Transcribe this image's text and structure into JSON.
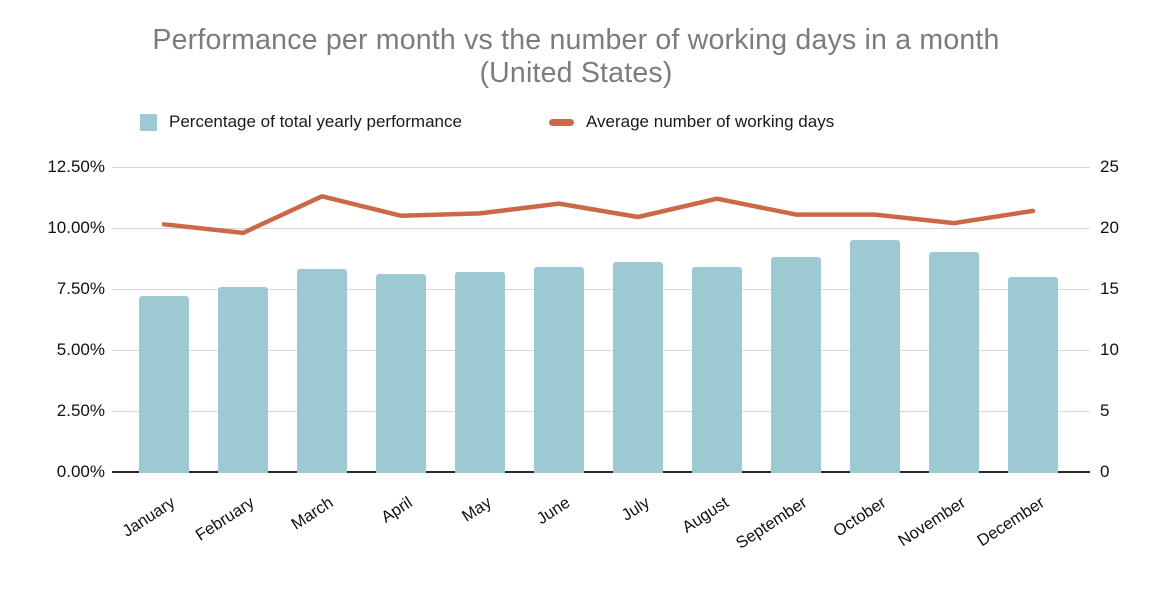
{
  "title": {
    "line1": "Performance per month vs the number of working days in a month",
    "line2": "(United States)"
  },
  "legend": {
    "items": [
      {
        "label": "Percentage of total yearly performance",
        "swatch": "square",
        "color": "#9dc9d3"
      },
      {
        "label": "Average number of working days",
        "swatch": "dash",
        "color": "#cb6847"
      }
    ]
  },
  "chart_data": {
    "type": "combo-bar-line",
    "title": "Performance per month vs the number of working days in a month (United States)",
    "categories": [
      "January",
      "February",
      "March",
      "April",
      "May",
      "June",
      "July",
      "August",
      "September",
      "October",
      "November",
      "December"
    ],
    "series": [
      {
        "name": "Percentage of total yearly performance",
        "type": "bar",
        "axis": "left",
        "color": "#9dc9d3",
        "unit": "%",
        "values": [
          7.2,
          7.6,
          8.3,
          8.1,
          8.2,
          8.4,
          8.6,
          8.4,
          8.8,
          9.5,
          9.0,
          8.0
        ]
      },
      {
        "name": "Average number of working days",
        "type": "line",
        "axis": "right",
        "color": "#cb6847",
        "values": [
          20.3,
          19.6,
          22.6,
          21.0,
          21.2,
          22.0,
          20.9,
          22.4,
          21.1,
          21.1,
          20.4,
          21.4
        ]
      }
    ],
    "left_axis": {
      "min": 0,
      "max": 12.5,
      "tick_labels": [
        "0.00%",
        "2.50%",
        "5.00%",
        "7.50%",
        "10.00%",
        "12.50%"
      ],
      "tick_values": [
        0,
        2.5,
        5,
        7.5,
        10,
        12.5
      ]
    },
    "right_axis": {
      "min": 0,
      "max": 25,
      "tick_labels": [
        "0",
        "5",
        "10",
        "15",
        "20",
        "25"
      ],
      "tick_values": [
        0,
        5,
        10,
        15,
        20,
        25
      ]
    },
    "grid": true,
    "legend_position": "top"
  }
}
